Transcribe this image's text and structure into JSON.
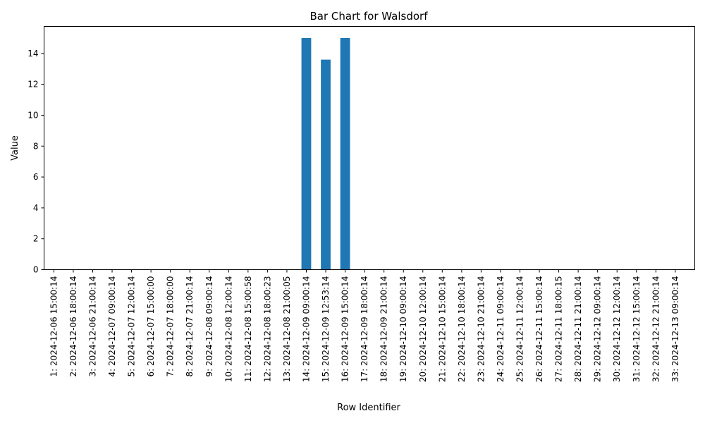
{
  "chart_data": {
    "type": "bar",
    "title": "Bar Chart for Walsdorf",
    "xlabel": "Row Identifier",
    "ylabel": "Value",
    "ylim": [
      0,
      15.75
    ],
    "yticks": [
      0,
      2,
      4,
      6,
      8,
      10,
      12,
      14
    ],
    "grid": false,
    "bar_color": "#1f77b4",
    "categories": [
      "1: 2024-12-06 15:00:14",
      "2: 2024-12-06 18:00:14",
      "3: 2024-12-06 21:00:14",
      "4: 2024-12-07 09:00:14",
      "5: 2024-12-07 12:00:14",
      "6: 2024-12-07 15:00:00",
      "7: 2024-12-07 18:00:00",
      "8: 2024-12-07 21:00:14",
      "9: 2024-12-08 09:00:14",
      "10: 2024-12-08 12:00:14",
      "11: 2024-12-08 15:00:58",
      "12: 2024-12-08 18:00:23",
      "13: 2024-12-08 21:00:05",
      "14: 2024-12-09 09:00:14",
      "15: 2024-12-09 12:53:14",
      "16: 2024-12-09 15:00:14",
      "17: 2024-12-09 18:00:14",
      "18: 2024-12-09 21:00:14",
      "19: 2024-12-10 09:00:14",
      "20: 2024-12-10 12:00:14",
      "21: 2024-12-10 15:00:14",
      "22: 2024-12-10 18:00:14",
      "23: 2024-12-10 21:00:14",
      "24: 2024-12-11 09:00:14",
      "25: 2024-12-11 12:00:14",
      "26: 2024-12-11 15:00:14",
      "27: 2024-12-11 18:00:15",
      "28: 2024-12-11 21:00:14",
      "29: 2024-12-12 09:00:14",
      "30: 2024-12-12 12:00:14",
      "31: 2024-12-12 15:00:14",
      "32: 2024-12-12 21:00:14",
      "33: 2024-12-13 09:00:14"
    ],
    "values": [
      0,
      0,
      0,
      0,
      0,
      0,
      0,
      0,
      0,
      0,
      0,
      0,
      0,
      15,
      13.6,
      15,
      0,
      0,
      0,
      0,
      0,
      0,
      0,
      0,
      0,
      0,
      0,
      0,
      0,
      0,
      0,
      0,
      0
    ]
  }
}
